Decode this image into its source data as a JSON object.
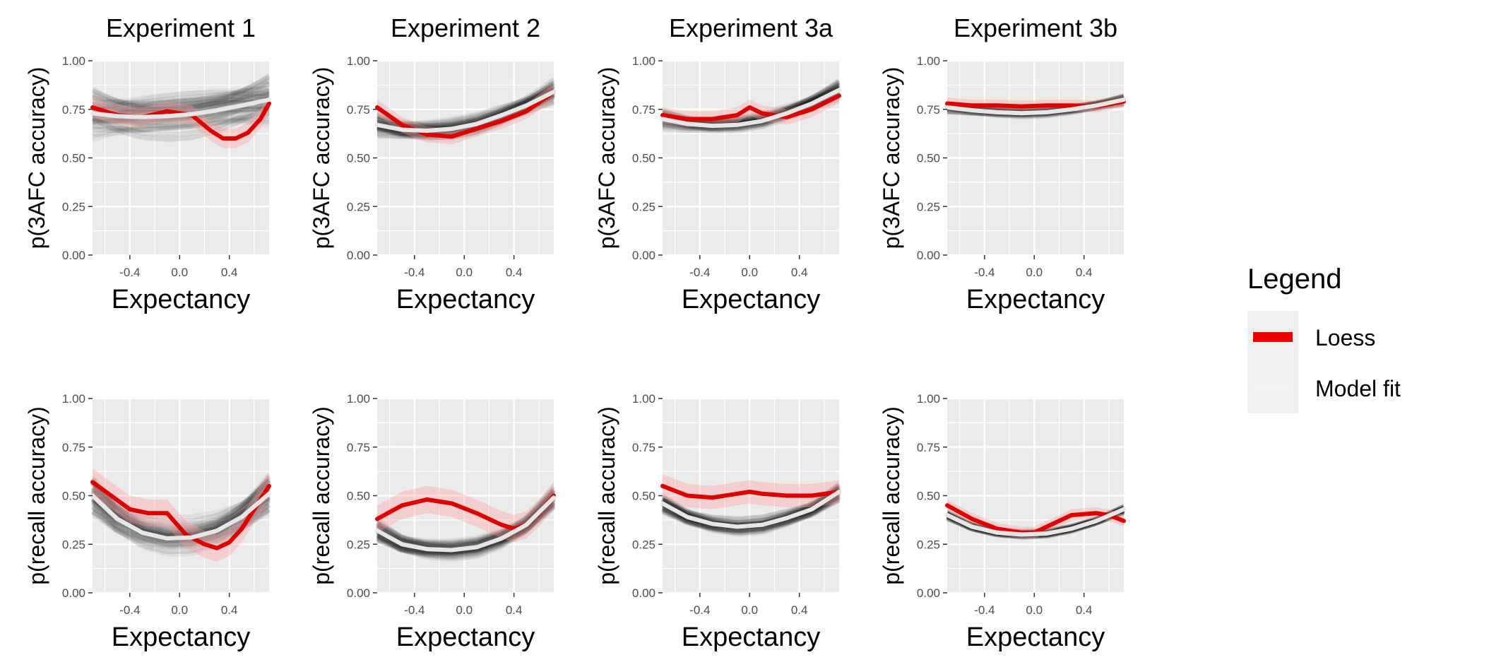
{
  "legend": {
    "title": "Legend",
    "entries": [
      {
        "label": "Loess",
        "color": "#ee0000"
      },
      {
        "label": "Model fit",
        "color": "#f2f2f2"
      }
    ]
  },
  "colors": {
    "panel_background": "#ebebeb",
    "grid": "#ffffff",
    "loess": "#dd0000",
    "loess_ribbon": "#ff9999",
    "model_fit": "#e6e6e6",
    "samples": "#000000"
  },
  "chart_data": [
    {
      "type": "line",
      "title": "Experiment 1",
      "xlabel": "Expectancy",
      "ylabel": "p(3AFC accuracy)",
      "xlim": [
        -0.7,
        0.72
      ],
      "ylim": [
        0,
        1
      ],
      "x_ticks": [
        -0.4,
        0.0,
        0.4
      ],
      "x_tick_labels": [
        "-0.4",
        "0.0",
        "0.4"
      ],
      "y_ticks": [
        0,
        0.25,
        0.5,
        0.75,
        1
      ],
      "y_tick_labels": [
        "0.00",
        "0.25",
        "0.50",
        "0.75",
        "1.00"
      ],
      "grid": true,
      "sample_spread": 0.14,
      "series": [
        {
          "name": "Loess",
          "x": [
            -0.7,
            -0.5,
            -0.3,
            -0.1,
            0.1,
            0.25,
            0.35,
            0.45,
            0.55,
            0.65,
            0.72
          ],
          "y": [
            0.76,
            0.72,
            0.71,
            0.74,
            0.72,
            0.64,
            0.6,
            0.6,
            0.63,
            0.7,
            0.78
          ],
          "ribbon_half_width": 0.05
        },
        {
          "name": "Model fit",
          "x": [
            -0.7,
            -0.5,
            -0.3,
            -0.1,
            0.1,
            0.3,
            0.5,
            0.72
          ],
          "y": [
            0.73,
            0.715,
            0.71,
            0.715,
            0.725,
            0.745,
            0.77,
            0.8
          ]
        }
      ]
    },
    {
      "type": "line",
      "title": "Experiment 2",
      "xlabel": "Expectancy",
      "ylabel": "p(3AFC accuracy)",
      "xlim": [
        -0.7,
        0.72
      ],
      "ylim": [
        0,
        1
      ],
      "x_ticks": [
        -0.4,
        0.0,
        0.4
      ],
      "x_tick_labels": [
        "-0.4",
        "0.0",
        "0.4"
      ],
      "y_ticks": [
        0,
        0.25,
        0.5,
        0.75,
        1
      ],
      "y_tick_labels": [
        "0.00",
        "0.25",
        "0.50",
        "0.75",
        "1.00"
      ],
      "grid": true,
      "sample_spread": 0.06,
      "series": [
        {
          "name": "Loess",
          "x": [
            -0.7,
            -0.5,
            -0.3,
            -0.1,
            0.1,
            0.3,
            0.5,
            0.72
          ],
          "y": [
            0.76,
            0.67,
            0.62,
            0.61,
            0.65,
            0.69,
            0.74,
            0.84
          ],
          "ribbon_half_width": 0.04
        },
        {
          "name": "Model fit",
          "x": [
            -0.7,
            -0.5,
            -0.3,
            -0.1,
            0.1,
            0.3,
            0.5,
            0.72
          ],
          "y": [
            0.67,
            0.645,
            0.64,
            0.65,
            0.675,
            0.72,
            0.77,
            0.84
          ]
        }
      ]
    },
    {
      "type": "line",
      "title": "Experiment 3a",
      "xlabel": "Expectancy",
      "ylabel": "p(3AFC accuracy)",
      "xlim": [
        -0.7,
        0.72
      ],
      "ylim": [
        0,
        1
      ],
      "x_ticks": [
        -0.4,
        0.0,
        0.4
      ],
      "x_tick_labels": [
        "-0.4",
        "0.0",
        "0.4"
      ],
      "y_ticks": [
        0,
        0.25,
        0.5,
        0.75,
        1
      ],
      "y_tick_labels": [
        "0.00",
        "0.25",
        "0.50",
        "0.75",
        "1.00"
      ],
      "grid": true,
      "sample_spread": 0.05,
      "series": [
        {
          "name": "Loess",
          "x": [
            -0.7,
            -0.5,
            -0.3,
            -0.1,
            0.0,
            0.1,
            0.3,
            0.5,
            0.72
          ],
          "y": [
            0.72,
            0.7,
            0.7,
            0.72,
            0.76,
            0.73,
            0.71,
            0.75,
            0.82
          ],
          "ribbon_half_width": 0.04
        },
        {
          "name": "Model fit",
          "x": [
            -0.7,
            -0.5,
            -0.3,
            -0.1,
            0.1,
            0.3,
            0.5,
            0.72
          ],
          "y": [
            0.7,
            0.675,
            0.665,
            0.67,
            0.69,
            0.73,
            0.78,
            0.85
          ]
        }
      ]
    },
    {
      "type": "line",
      "title": "Experiment 3b",
      "xlabel": "Expectancy",
      "ylabel": "p(3AFC accuracy)",
      "xlim": [
        -0.7,
        0.72
      ],
      "ylim": [
        0,
        1
      ],
      "x_ticks": [
        -0.4,
        0.0,
        0.4
      ],
      "x_tick_labels": [
        "-0.4",
        "0.0",
        "0.4"
      ],
      "y_ticks": [
        0,
        0.25,
        0.5,
        0.75,
        1
      ],
      "y_tick_labels": [
        "0.00",
        "0.25",
        "0.50",
        "0.75",
        "1.00"
      ],
      "grid": true,
      "sample_spread": 0.025,
      "series": [
        {
          "name": "Loess",
          "x": [
            -0.7,
            -0.5,
            -0.3,
            -0.1,
            0.1,
            0.3,
            0.5,
            0.72
          ],
          "y": [
            0.78,
            0.77,
            0.77,
            0.765,
            0.77,
            0.77,
            0.765,
            0.79
          ],
          "ribbon_half_width": 0.03
        },
        {
          "name": "Model fit",
          "x": [
            -0.7,
            -0.5,
            -0.3,
            -0.1,
            0.1,
            0.3,
            0.5,
            0.72
          ],
          "y": [
            0.76,
            0.745,
            0.735,
            0.73,
            0.735,
            0.75,
            0.77,
            0.8
          ]
        }
      ]
    },
    {
      "type": "line",
      "title": "",
      "xlabel": "Expectancy",
      "ylabel": "p(recall accuracy)",
      "xlim": [
        -0.7,
        0.72
      ],
      "ylim": [
        0,
        1
      ],
      "x_ticks": [
        -0.4,
        0.0,
        0.4
      ],
      "x_tick_labels": [
        "-0.4",
        "0.0",
        "0.4"
      ],
      "y_ticks": [
        0,
        0.25,
        0.5,
        0.75,
        1
      ],
      "y_tick_labels": [
        "0.00",
        "0.25",
        "0.50",
        "0.75",
        "1.00"
      ],
      "grid": true,
      "sample_spread": 0.12,
      "series": [
        {
          "name": "Loess",
          "x": [
            -0.7,
            -0.55,
            -0.4,
            -0.25,
            -0.1,
            0.05,
            0.2,
            0.3,
            0.4,
            0.5,
            0.6,
            0.72
          ],
          "y": [
            0.57,
            0.5,
            0.43,
            0.41,
            0.41,
            0.3,
            0.25,
            0.23,
            0.26,
            0.33,
            0.43,
            0.55
          ],
          "ribbon_half_width": 0.07
        },
        {
          "name": "Model fit",
          "x": [
            -0.7,
            -0.5,
            -0.3,
            -0.1,
            0.1,
            0.3,
            0.5,
            0.72
          ],
          "y": [
            0.5,
            0.38,
            0.31,
            0.28,
            0.285,
            0.32,
            0.39,
            0.51
          ]
        }
      ]
    },
    {
      "type": "line",
      "title": "",
      "xlabel": "Expectancy",
      "ylabel": "p(recall accuracy)",
      "xlim": [
        -0.7,
        0.72
      ],
      "ylim": [
        0,
        1
      ],
      "x_ticks": [
        -0.4,
        0.0,
        0.4
      ],
      "x_tick_labels": [
        "-0.4",
        "0.0",
        "0.4"
      ],
      "y_ticks": [
        0,
        0.25,
        0.5,
        0.75,
        1
      ],
      "y_tick_labels": [
        "0.00",
        "0.25",
        "0.50",
        "0.75",
        "1.00"
      ],
      "grid": true,
      "sample_spread": 0.06,
      "series": [
        {
          "name": "Loess",
          "x": [
            -0.7,
            -0.5,
            -0.3,
            -0.1,
            0.1,
            0.3,
            0.4,
            0.5,
            0.6,
            0.72
          ],
          "y": [
            0.38,
            0.45,
            0.48,
            0.46,
            0.41,
            0.35,
            0.33,
            0.35,
            0.41,
            0.5
          ],
          "ribbon_half_width": 0.07
        },
        {
          "name": "Model fit",
          "x": [
            -0.7,
            -0.5,
            -0.3,
            -0.1,
            0.1,
            0.3,
            0.5,
            0.72
          ],
          "y": [
            0.32,
            0.25,
            0.225,
            0.22,
            0.235,
            0.28,
            0.35,
            0.49
          ]
        }
      ]
    },
    {
      "type": "line",
      "title": "",
      "xlabel": "Expectancy",
      "ylabel": "p(recall accuracy)",
      "xlim": [
        -0.7,
        0.72
      ],
      "ylim": [
        0,
        1
      ],
      "x_ticks": [
        -0.4,
        0.0,
        0.4
      ],
      "x_tick_labels": [
        "-0.4",
        "0.0",
        "0.4"
      ],
      "y_ticks": [
        0,
        0.25,
        0.5,
        0.75,
        1
      ],
      "y_tick_labels": [
        "0.00",
        "0.25",
        "0.50",
        "0.75",
        "1.00"
      ],
      "grid": true,
      "sample_spread": 0.05,
      "series": [
        {
          "name": "Loess",
          "x": [
            -0.7,
            -0.5,
            -0.3,
            -0.1,
            0.0,
            0.1,
            0.3,
            0.5,
            0.72
          ],
          "y": [
            0.55,
            0.5,
            0.49,
            0.51,
            0.52,
            0.51,
            0.5,
            0.5,
            0.52
          ],
          "ribbon_half_width": 0.06
        },
        {
          "name": "Model fit",
          "x": [
            -0.7,
            -0.5,
            -0.3,
            -0.1,
            0.1,
            0.3,
            0.5,
            0.72
          ],
          "y": [
            0.46,
            0.39,
            0.355,
            0.34,
            0.35,
            0.385,
            0.43,
            0.52
          ]
        }
      ]
    },
    {
      "type": "line",
      "title": "",
      "xlabel": "Expectancy",
      "ylabel": "p(recall accuracy)",
      "xlim": [
        -0.7,
        0.72
      ],
      "ylim": [
        0,
        1
      ],
      "x_ticks": [
        -0.4,
        0.0,
        0.4
      ],
      "x_tick_labels": [
        "-0.4",
        "0.0",
        "0.4"
      ],
      "y_ticks": [
        0,
        0.25,
        0.5,
        0.75,
        1
      ],
      "y_tick_labels": [
        "0.00",
        "0.25",
        "0.50",
        "0.75",
        "1.00"
      ],
      "grid": true,
      "sample_spread": 0.02,
      "series": [
        {
          "name": "Loess",
          "x": [
            -0.7,
            -0.5,
            -0.3,
            -0.1,
            0.0,
            0.1,
            0.3,
            0.5,
            0.6,
            0.72
          ],
          "y": [
            0.45,
            0.38,
            0.33,
            0.31,
            0.31,
            0.34,
            0.4,
            0.41,
            0.4,
            0.37
          ],
          "ribbon_half_width": 0.03
        },
        {
          "name": "Model fit",
          "x": [
            -0.7,
            -0.5,
            -0.3,
            -0.1,
            0.1,
            0.3,
            0.5,
            0.72
          ],
          "y": [
            0.4,
            0.34,
            0.31,
            0.3,
            0.305,
            0.33,
            0.37,
            0.43
          ]
        }
      ]
    }
  ]
}
